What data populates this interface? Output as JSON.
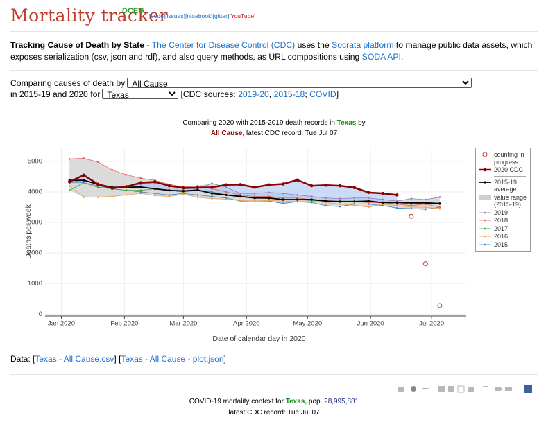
{
  "header": {
    "title": "Mortality tracker",
    "badge": "DCEG",
    "links": [
      {
        "text": "[code]",
        "style": "link"
      },
      {
        "text": "[issues]",
        "style": "link"
      },
      {
        "text": "[notebook]",
        "style": "link"
      },
      {
        "text": "[gitter]",
        "style": "link"
      },
      {
        "text": "[YouTube]",
        "style": "red"
      }
    ]
  },
  "intro": [
    {
      "text": "Tracking Cause of Death by State",
      "style": "bold"
    },
    {
      "text": " - ",
      "style": "plain"
    },
    {
      "text": "The Center for Disease Control (CDC)",
      "style": "link"
    },
    {
      "text": " uses the ",
      "style": "plain"
    },
    {
      "text": "Socrata platform",
      "style": "link"
    },
    {
      "text": " to manage public data assets, which exposes serialization (csv, json and rdf), and also query methods, as URL compositions using ",
      "style": "plain"
    },
    {
      "text": "SODA API",
      "style": "link"
    },
    {
      "text": ".",
      "style": "plain"
    }
  ],
  "controls": {
    "cause_label": "Comparing causes of death by",
    "cause_value": "All Cause",
    "state_label": "in 2015-19 and 2020 for",
    "state_value": "Texas",
    "sources": [
      {
        "text": "[CDC sources: ",
        "style": "plain"
      },
      {
        "text": "2019-20",
        "style": "link"
      },
      {
        "text": ", ",
        "style": "plain"
      },
      {
        "text": "2015-18",
        "style": "link"
      },
      {
        "text": "; ",
        "style": "plain"
      },
      {
        "text": "COVID",
        "style": "link"
      },
      {
        "text": "]",
        "style": "plain"
      }
    ]
  },
  "chart": {
    "type": "line",
    "title": [
      {
        "text": "Comparing 2020 with 2015-2019 death records in ",
        "style": "plain"
      },
      {
        "text": "Texas",
        "style": "green"
      },
      {
        "text": " by",
        "style": "plain"
      }
    ],
    "subtitle": [
      {
        "text": "All Cause",
        "style": "darkred"
      },
      {
        "text": ", latest CDC record: Tue Jul 07",
        "style": "plain"
      }
    ],
    "x_label": "Date of calendar day in 2020",
    "y_label": "Deaths per week",
    "x": [
      4,
      11,
      18,
      25,
      32,
      39,
      46,
      53,
      60,
      67,
      74,
      81,
      88,
      95,
      102,
      109,
      116,
      123,
      130,
      137,
      144,
      151,
      158,
      165,
      172,
      179,
      186
    ],
    "xlim": [
      -8,
      199
    ],
    "xticks": [
      {
        "value": 0,
        "label": "Jan 2020"
      },
      {
        "value": 31,
        "label": "Feb 2020"
      },
      {
        "value": 60,
        "label": "Mar 2020"
      },
      {
        "value": 91,
        "label": "Apr 2020"
      },
      {
        "value": 121,
        "label": "May 2020"
      },
      {
        "value": 152,
        "label": "Jun 2020"
      },
      {
        "value": 182,
        "label": "Jul 2020"
      }
    ],
    "ylim": [
      -60,
      5450
    ],
    "yticks": [
      0,
      1000,
      2000,
      3000,
      4000,
      5000
    ],
    "grid": true,
    "range": {
      "name": "value range (2015-19)",
      "color": "#cfcfcf"
    },
    "series": [
      {
        "name": "counting in progress",
        "color": "#c0392b",
        "mode": "hollow",
        "values": [
          null,
          null,
          null,
          null,
          null,
          null,
          null,
          null,
          null,
          null,
          null,
          null,
          null,
          null,
          null,
          null,
          null,
          null,
          null,
          null,
          null,
          null,
          null,
          null,
          3200,
          1650,
          280
        ]
      },
      {
        "name": "2020 CDC",
        "color": "#8b0000",
        "mode": "lines+markers",
        "width": 2.5,
        "fill_to": 2,
        "fill_color": "#aac4f4",
        "values": [
          4330,
          4550,
          4250,
          4120,
          4170,
          4300,
          4330,
          4200,
          4130,
          4140,
          4150,
          4230,
          4240,
          4150,
          4230,
          4260,
          4390,
          4200,
          4220,
          4200,
          4140,
          3980,
          3950,
          3900,
          null,
          null,
          null
        ]
      },
      {
        "name": "2015-19 average",
        "color": "#000000",
        "mode": "lines+markers",
        "width": 1.8,
        "values": [
          4380,
          4380,
          4250,
          4150,
          4150,
          4160,
          4100,
          4050,
          4030,
          4060,
          3950,
          3900,
          3850,
          3800,
          3800,
          3750,
          3750,
          3750,
          3700,
          3680,
          3680,
          3700,
          3650,
          3650,
          3640,
          3640,
          3620
        ]
      },
      {
        "name": "2019",
        "color": "#8e7cc3",
        "mode": "lines+markers",
        "width": 0.8,
        "in_range": true,
        "values": [
          4400,
          4300,
          4200,
          4150,
          4200,
          4250,
          4300,
          4200,
          4100,
          4100,
          4280,
          4150,
          3950,
          3950,
          3980,
          3950,
          3900,
          3850,
          3800,
          3780,
          3800,
          3800,
          3750,
          3700,
          3780,
          3750,
          3830
        ]
      },
      {
        "name": "2018",
        "color": "#e06666",
        "mode": "lines+markers",
        "width": 0.8,
        "in_range": true,
        "values": [
          5080,
          5100,
          4980,
          4720,
          4560,
          4450,
          4380,
          4250,
          4160,
          4200,
          4100,
          4000,
          3900,
          3850,
          3850,
          3800,
          3800,
          3750,
          3700,
          3700,
          3680,
          3650,
          3650,
          3600,
          3550,
          3600,
          3500
        ]
      },
      {
        "name": "2017",
        "color": "#38a038",
        "mode": "lines+markers",
        "width": 0.8,
        "in_range": true,
        "values": [
          4050,
          4300,
          4150,
          4100,
          4050,
          4050,
          4100,
          4050,
          4000,
          4050,
          4000,
          3900,
          3850,
          3800,
          3780,
          3750,
          3750,
          3720,
          3700,
          3700,
          3700,
          3700,
          3650,
          3650,
          3600,
          3650,
          3600
        ]
      },
      {
        "name": "2016",
        "color": "#f0a050",
        "mode": "lines+markers",
        "width": 0.8,
        "in_range": true,
        "values": [
          4200,
          3830,
          3830,
          3850,
          3900,
          3950,
          3880,
          3850,
          3920,
          3820,
          3780,
          3760,
          3720,
          3700,
          3720,
          3700,
          3700,
          3700,
          3650,
          3600,
          3560,
          3500,
          3600,
          3550,
          3500,
          3500,
          3450
        ]
      },
      {
        "name": "2015",
        "color": "#3d85c6",
        "mode": "lines+markers",
        "width": 0.8,
        "in_range": true,
        "values": [
          4300,
          4300,
          4200,
          4100,
          4050,
          4000,
          3950,
          3900,
          3950,
          3900,
          3850,
          3800,
          3700,
          3700,
          3700,
          3620,
          3680,
          3650,
          3550,
          3520,
          3600,
          3600,
          3550,
          3470,
          3450,
          3430,
          3500
        ]
      }
    ]
  },
  "data_links": [
    {
      "text": "Data: [",
      "style": "plain"
    },
    {
      "text": "Texas - All Cause.csv",
      "style": "link"
    },
    {
      "text": "] [",
      "style": "plain"
    },
    {
      "text": "Texas - All Cause - plot.json",
      "style": "link"
    },
    {
      "text": "]",
      "style": "plain"
    }
  ],
  "footer": {
    "line1": [
      {
        "text": "COVID-19 mortality context for ",
        "style": "plain"
      },
      {
        "text": "Texas",
        "style": "green"
      },
      {
        "text": ", pop. ",
        "style": "plain"
      },
      {
        "text": "28,995,881",
        "style": "navy"
      }
    ],
    "line2": [
      {
        "text": "latest CDC record: Tue Jul 07",
        "style": "plain"
      }
    ]
  }
}
